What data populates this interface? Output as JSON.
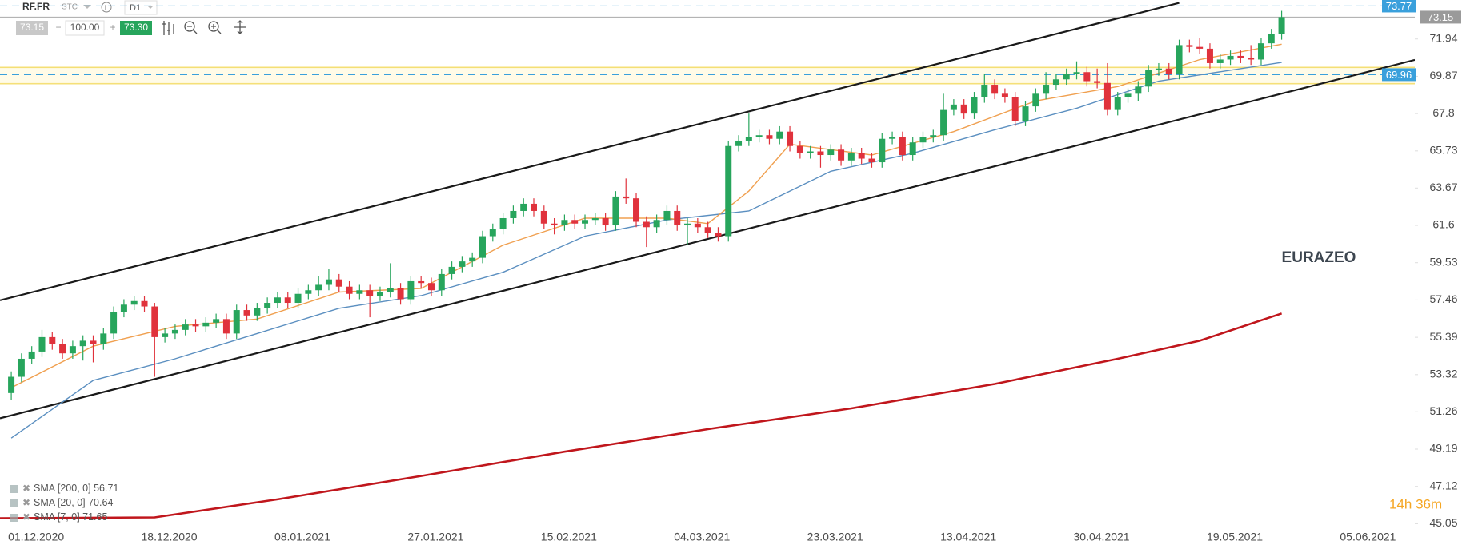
{
  "toolbar": {
    "symbol": "RF.FR",
    "market": "STC",
    "interval": "D1",
    "bid": "73.15",
    "volume": "100.00",
    "ask": "73.30"
  },
  "chart_data": {
    "type": "candlestick",
    "annotation": "EURAZEO",
    "timer": "14h 36m",
    "xlim": [
      -1.1,
      137
    ],
    "ylim": [
      44.58,
      74.1
    ],
    "yticks": [
      71.94,
      69.87,
      67.8,
      65.73,
      63.67,
      61.6,
      59.53,
      57.46,
      55.39,
      53.32,
      51.26,
      49.19,
      47.12,
      45.05
    ],
    "xticks": [
      {
        "value": 0,
        "label": "01.12.2020"
      },
      {
        "value": 13,
        "label": "18.12.2020"
      },
      {
        "value": 26,
        "label": "08.01.2021"
      },
      {
        "value": 39,
        "label": "27.01.2021"
      },
      {
        "value": 52,
        "label": "15.02.2021"
      },
      {
        "value": 65,
        "label": "04.03.2021"
      },
      {
        "value": 78,
        "label": "23.03.2021"
      },
      {
        "value": 91,
        "label": "13.04.2021"
      },
      {
        "value": 104,
        "label": "30.04.2021"
      },
      {
        "value": 117,
        "label": "19.05.2021"
      },
      {
        "value": 130,
        "label": "05.06.2021"
      }
    ],
    "up_color": "#27a55c",
    "down_color": "#e0323c",
    "ohlc": [
      [
        52.3,
        53.5,
        51.9,
        53.2
      ],
      [
        53.2,
        54.5,
        52.9,
        54.2
      ],
      [
        54.2,
        54.9,
        53.9,
        54.6
      ],
      [
        54.6,
        55.8,
        54.3,
        55.4
      ],
      [
        55.4,
        55.7,
        54.7,
        55.0
      ],
      [
        55.0,
        55.3,
        54.2,
        54.5
      ],
      [
        54.5,
        55.2,
        54.2,
        54.9
      ],
      [
        54.9,
        55.5,
        54.1,
        55.2
      ],
      [
        55.2,
        55.5,
        54.0,
        55.0
      ],
      [
        55.0,
        55.9,
        54.7,
        55.6
      ],
      [
        55.6,
        57.1,
        55.3,
        56.8
      ],
      [
        56.8,
        57.5,
        56.5,
        57.2
      ],
      [
        57.2,
        57.7,
        56.9,
        57.4
      ],
      [
        57.4,
        57.7,
        56.8,
        57.1
      ],
      [
        57.1,
        57.3,
        53.2,
        55.4
      ],
      [
        55.4,
        55.9,
        55.1,
        55.6
      ],
      [
        55.6,
        56.1,
        55.3,
        55.8
      ],
      [
        55.8,
        56.4,
        55.5,
        56.1
      ],
      [
        56.1,
        56.4,
        55.7,
        56.0
      ],
      [
        56.0,
        56.5,
        55.7,
        56.2
      ],
      [
        56.2,
        56.7,
        55.9,
        56.4
      ],
      [
        56.4,
        56.7,
        55.3,
        55.6
      ],
      [
        55.6,
        57.2,
        55.3,
        56.9
      ],
      [
        56.9,
        57.2,
        56.3,
        56.6
      ],
      [
        56.6,
        57.3,
        56.3,
        57.0
      ],
      [
        57.0,
        57.6,
        56.7,
        57.3
      ],
      [
        57.3,
        57.9,
        57.0,
        57.6
      ],
      [
        57.6,
        57.9,
        57.0,
        57.3
      ],
      [
        57.3,
        58.1,
        57.0,
        57.8
      ],
      [
        57.8,
        58.3,
        57.5,
        58.0
      ],
      [
        58.0,
        58.8,
        57.7,
        58.3
      ],
      [
        58.3,
        59.2,
        58.0,
        58.6
      ],
      [
        58.6,
        58.9,
        57.9,
        58.2
      ],
      [
        58.2,
        58.5,
        57.5,
        57.8
      ],
      [
        57.8,
        58.3,
        57.5,
        58.0
      ],
      [
        58.0,
        58.3,
        56.5,
        57.7
      ],
      [
        57.7,
        58.2,
        57.4,
        57.9
      ],
      [
        57.9,
        59.5,
        57.6,
        58.1
      ],
      [
        58.1,
        58.4,
        57.2,
        57.5
      ],
      [
        57.5,
        58.8,
        57.2,
        58.5
      ],
      [
        58.5,
        58.8,
        58.1,
        58.4
      ],
      [
        58.4,
        58.7,
        57.7,
        58.0
      ],
      [
        58.0,
        59.2,
        57.7,
        58.9
      ],
      [
        58.9,
        59.6,
        58.6,
        59.3
      ],
      [
        59.3,
        59.9,
        59.0,
        59.6
      ],
      [
        59.6,
        60.1,
        59.3,
        59.8
      ],
      [
        59.8,
        61.3,
        59.5,
        61.0
      ],
      [
        61.0,
        61.7,
        60.7,
        61.4
      ],
      [
        61.4,
        62.3,
        61.1,
        62.0
      ],
      [
        62.0,
        62.7,
        61.7,
        62.4
      ],
      [
        62.4,
        63.1,
        62.1,
        62.8
      ],
      [
        62.8,
        63.1,
        62.1,
        62.4
      ],
      [
        62.4,
        62.7,
        61.4,
        61.7
      ],
      [
        61.7,
        62.0,
        61.1,
        61.6
      ],
      [
        61.6,
        62.2,
        61.3,
        61.9
      ],
      [
        61.9,
        62.2,
        61.4,
        61.7
      ],
      [
        61.7,
        62.2,
        61.4,
        61.9
      ],
      [
        61.9,
        62.3,
        61.6,
        62.0
      ],
      [
        62.0,
        62.3,
        61.3,
        61.6
      ],
      [
        61.6,
        63.5,
        61.3,
        63.2
      ],
      [
        63.2,
        64.2,
        62.8,
        63.1
      ],
      [
        63.1,
        63.4,
        61.5,
        61.8
      ],
      [
        61.8,
        62.1,
        60.4,
        61.5
      ],
      [
        61.5,
        62.2,
        61.2,
        61.9
      ],
      [
        61.9,
        62.7,
        61.6,
        62.4
      ],
      [
        62.4,
        62.7,
        61.3,
        61.6
      ],
      [
        61.6,
        62.0,
        60.5,
        61.7
      ],
      [
        61.7,
        62.0,
        61.2,
        61.5
      ],
      [
        61.5,
        61.8,
        60.9,
        61.2
      ],
      [
        61.2,
        61.5,
        60.7,
        61.0
      ],
      [
        61.0,
        66.3,
        60.7,
        66.0
      ],
      [
        66.0,
        66.6,
        65.7,
        66.3
      ],
      [
        66.3,
        67.8,
        66.0,
        66.5
      ],
      [
        66.5,
        66.9,
        66.2,
        66.6
      ],
      [
        66.6,
        66.9,
        66.1,
        66.4
      ],
      [
        66.4,
        67.1,
        66.1,
        66.8
      ],
      [
        66.8,
        67.1,
        65.7,
        66.0
      ],
      [
        66.0,
        66.3,
        65.3,
        65.6
      ],
      [
        65.6,
        66.0,
        65.3,
        65.7
      ],
      [
        65.7,
        66.0,
        64.8,
        65.5
      ],
      [
        65.5,
        66.1,
        65.2,
        65.8
      ],
      [
        65.8,
        66.1,
        64.9,
        65.2
      ],
      [
        65.2,
        65.9,
        64.9,
        65.6
      ],
      [
        65.6,
        65.9,
        65.0,
        65.3
      ],
      [
        65.3,
        65.6,
        64.8,
        65.1
      ],
      [
        65.1,
        66.7,
        64.8,
        66.4
      ],
      [
        66.4,
        66.8,
        66.1,
        66.5
      ],
      [
        66.5,
        66.8,
        65.2,
        65.5
      ],
      [
        65.5,
        66.5,
        65.2,
        66.2
      ],
      [
        66.2,
        66.8,
        65.9,
        66.5
      ],
      [
        66.5,
        66.9,
        66.2,
        66.6
      ],
      [
        66.6,
        68.9,
        66.3,
        68.0
      ],
      [
        68.0,
        68.6,
        67.7,
        68.3
      ],
      [
        68.3,
        68.6,
        67.5,
        67.8
      ],
      [
        67.8,
        69.0,
        67.5,
        68.7
      ],
      [
        68.7,
        70.0,
        68.4,
        69.4
      ],
      [
        69.4,
        69.7,
        68.6,
        68.9
      ],
      [
        68.9,
        69.2,
        68.4,
        68.7
      ],
      [
        68.7,
        69.0,
        67.1,
        67.4
      ],
      [
        67.4,
        68.5,
        67.1,
        68.2
      ],
      [
        68.2,
        69.2,
        67.9,
        68.9
      ],
      [
        68.9,
        70.1,
        68.6,
        69.4
      ],
      [
        69.4,
        70.0,
        69.1,
        69.7
      ],
      [
        69.7,
        70.3,
        69.4,
        70.0
      ],
      [
        70.0,
        70.7,
        69.7,
        70.1
      ],
      [
        70.1,
        70.4,
        69.3,
        69.6
      ],
      [
        69.6,
        70.3,
        69.2,
        69.5
      ],
      [
        69.5,
        70.6,
        67.7,
        68.0
      ],
      [
        68.0,
        69.0,
        67.7,
        68.7
      ],
      [
        68.7,
        69.2,
        68.4,
        68.9
      ],
      [
        68.9,
        69.6,
        68.5,
        69.3
      ],
      [
        69.3,
        70.5,
        69.0,
        70.2
      ],
      [
        70.2,
        70.6,
        69.9,
        70.3
      ],
      [
        70.3,
        70.6,
        69.7,
        70.0
      ],
      [
        70.0,
        71.9,
        69.7,
        71.6
      ],
      [
        71.6,
        71.9,
        71.2,
        71.5
      ],
      [
        71.5,
        72.0,
        71.1,
        71.4
      ],
      [
        71.4,
        71.7,
        70.3,
        70.6
      ],
      [
        70.6,
        71.1,
        70.3,
        70.8
      ],
      [
        70.8,
        71.3,
        70.5,
        71.0
      ],
      [
        71.0,
        71.3,
        70.6,
        70.9
      ],
      [
        70.9,
        71.6,
        70.5,
        70.8
      ],
      [
        70.8,
        72.0,
        70.5,
        71.7
      ],
      [
        71.7,
        72.5,
        71.4,
        72.2
      ],
      [
        72.2,
        73.5,
        71.9,
        73.15
      ]
    ],
    "series": [
      {
        "name": "SMA [200, 0]",
        "last": 56.71,
        "color": "#c0161c",
        "x": [
          -1.1,
          14,
          26,
          40,
          54,
          68,
          82,
          96,
          108,
          116,
          124
        ],
        "values": [
          45.35,
          45.4,
          46.4,
          47.7,
          49.05,
          50.3,
          51.45,
          52.8,
          54.2,
          55.2,
          56.71
        ]
      },
      {
        "name": "SMA [20, 0]",
        "last": 70.64,
        "color": "#5b8fc0",
        "x": [
          0,
          8,
          16,
          24,
          32,
          40,
          48,
          56,
          64,
          72,
          80,
          88,
          96,
          104,
          112,
          124
        ],
        "values": [
          49.8,
          53.0,
          54.2,
          55.6,
          57.0,
          57.7,
          59.0,
          61.0,
          61.9,
          62.4,
          64.6,
          65.6,
          66.9,
          68.1,
          69.6,
          70.64
        ]
      },
      {
        "name": "SMA [7, 0]",
        "last": 71.65,
        "color": "#f0a050",
        "x": [
          0,
          8,
          16,
          24,
          32,
          40,
          48,
          56,
          64,
          68,
          72,
          76,
          84,
          92,
          100,
          108,
          116,
          124
        ],
        "values": [
          52.6,
          54.9,
          56.0,
          56.4,
          57.9,
          58.1,
          60.5,
          62.0,
          62.0,
          61.7,
          63.5,
          66.1,
          65.5,
          66.8,
          68.5,
          69.3,
          70.8,
          71.65
        ]
      }
    ],
    "trendlines": [
      {
        "x": [
          -1.1,
          114
        ],
        "values": [
          57.44,
          73.94
        ]
      },
      {
        "x": [
          -1.1,
          137
        ],
        "values": [
          50.9,
          70.78
        ]
      }
    ],
    "zone": [
      69.46,
      70.36
    ],
    "levels": [
      73.77,
      69.96
    ],
    "last_price": 73.15
  }
}
